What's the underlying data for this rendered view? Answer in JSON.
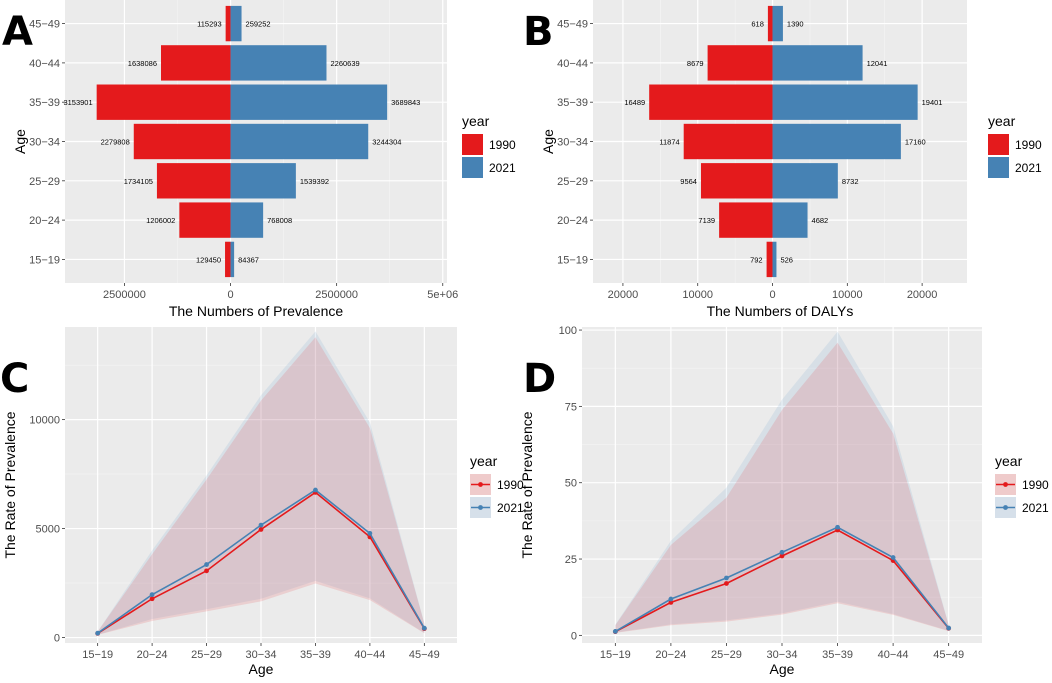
{
  "chart_data": [
    {
      "panel": "A",
      "type": "bar",
      "orientation": "horizontal-population-pyramid",
      "title": "",
      "xlabel": "The Numbers of Prevalence",
      "ylabel": "Age",
      "xlim": [
        -3900000,
        5100000
      ],
      "xticks": [
        -2500000,
        0,
        2500000,
        5000000
      ],
      "xtick_labels": [
        "2500000",
        "0",
        "2500000",
        "5e+06"
      ],
      "categories": [
        "15-19",
        "20-24",
        "25-29",
        "30-34",
        "35-39",
        "40-44",
        "45-49"
      ],
      "category_labels": [
        "15−19",
        "20−24",
        "25−29",
        "30−34",
        "35−39",
        "40−44",
        "45−49"
      ],
      "series": [
        {
          "name": "1990",
          "color": "#E41A1C",
          "values": [
            129450,
            1206002,
            1734105,
            2279808,
            3153901,
            1638086,
            115293
          ]
        },
        {
          "name": "2021",
          "color": "#4682B4",
          "values": [
            84367,
            768008,
            1539392,
            3244304,
            3689843,
            2260639,
            259252
          ]
        }
      ],
      "legend_title": "year",
      "legend_position": "right"
    },
    {
      "panel": "B",
      "type": "bar",
      "orientation": "horizontal-population-pyramid",
      "title": "",
      "xlabel": "The Numbers of DALYs",
      "ylabel": "Age",
      "xlim": [
        -24000,
        26000
      ],
      "xticks": [
        -20000,
        -10000,
        0,
        10000,
        20000
      ],
      "xtick_labels": [
        "20000",
        "10000",
        "0",
        "10000",
        "20000"
      ],
      "categories": [
        "15-19",
        "20-24",
        "25-29",
        "30-34",
        "35-39",
        "40-44",
        "45-49"
      ],
      "category_labels": [
        "15−19",
        "20−24",
        "25−29",
        "30−34",
        "35−39",
        "40−44",
        "45−49"
      ],
      "series": [
        {
          "name": "1990",
          "color": "#E41A1C",
          "values": [
            792,
            7139,
            9564,
            11874,
            16489,
            8679,
            618
          ]
        },
        {
          "name": "2021",
          "color": "#4682B4",
          "values": [
            526,
            4682,
            8732,
            17160,
            19401,
            12041,
            1390
          ]
        }
      ],
      "legend_title": "year",
      "legend_position": "right"
    },
    {
      "panel": "C",
      "type": "line",
      "title": "",
      "xlabel": "Age",
      "ylabel": "The Rate of Prevalence",
      "ylim": [
        -250,
        14250
      ],
      "yticks": [
        0,
        5000,
        10000
      ],
      "ytick_labels": [
        "0",
        "5000",
        "10000"
      ],
      "categories": [
        "15-19",
        "20-24",
        "25-29",
        "30-34",
        "35-39",
        "40-44",
        "45-49"
      ],
      "category_labels": [
        "15−19",
        "20−24",
        "25−29",
        "30−34",
        "35−39",
        "40−44",
        "45−49"
      ],
      "series": [
        {
          "name": "1990",
          "color": "#E41A1C",
          "values": [
            190,
            1780,
            3060,
            4960,
            6660,
            4620,
            410
          ],
          "lower": [
            120,
            760,
            1200,
            1660,
            2480,
            1720,
            200
          ],
          "upper": [
            270,
            3820,
            7250,
            10870,
            13780,
            9610,
            640
          ]
        },
        {
          "name": "2021",
          "color": "#4682B4",
          "values": [
            200,
            1970,
            3350,
            5160,
            6770,
            4780,
            430
          ],
          "lower": [
            130,
            850,
            1300,
            1780,
            2600,
            1800,
            210
          ],
          "upper": [
            280,
            4000,
            7440,
            11120,
            14050,
            9870,
            660
          ]
        }
      ],
      "legend_title": "year",
      "legend_position": "right"
    },
    {
      "panel": "D",
      "type": "line",
      "title": "",
      "xlabel": "Age",
      "ylabel": "The Rate of Prevalence",
      "ylim": [
        -2.5,
        101
      ],
      "yticks": [
        0,
        25,
        50,
        75,
        100
      ],
      "ytick_labels": [
        "0",
        "25",
        "50",
        "75",
        "100"
      ],
      "categories": [
        "15-19",
        "20-24",
        "25-29",
        "30-34",
        "35-39",
        "40-44",
        "45-49"
      ],
      "category_labels": [
        "15−19",
        "20−24",
        "25−29",
        "30−34",
        "35−39",
        "40−44",
        "45−49"
      ],
      "series": [
        {
          "name": "1990",
          "color": "#E41A1C",
          "values": [
            1.2,
            10.8,
            17.0,
            26.0,
            34.5,
            24.5,
            2.3
          ],
          "lower": [
            0.8,
            3.3,
            4.5,
            6.8,
            10.5,
            6.7,
            1.4
          ],
          "upper": [
            3.3,
            29.6,
            45.1,
            73.8,
            95.9,
            66.1,
            3.3
          ]
        },
        {
          "name": "2021",
          "color": "#4682B4",
          "values": [
            1.3,
            11.9,
            18.8,
            27.2,
            35.4,
            25.5,
            2.4
          ],
          "lower": [
            0.9,
            3.6,
            4.9,
            7.2,
            11.0,
            7.0,
            1.5
          ],
          "upper": [
            3.5,
            31.0,
            48.4,
            77.2,
            99.5,
            68.5,
            3.5
          ]
        }
      ],
      "legend_title": "year",
      "legend_position": "right"
    }
  ],
  "panel_labels": [
    "A",
    "B",
    "C",
    "D"
  ]
}
